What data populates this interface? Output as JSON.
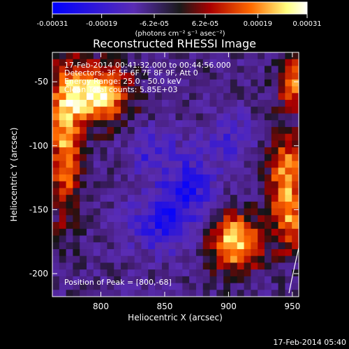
{
  "chart_data": {
    "type": "heatmap",
    "title": "Reconstructed RHESSI Image",
    "xlabel": "Heliocentric X (arcsec)",
    "ylabel": "Heliocentric Y (arcsec)",
    "xlim": [
      762,
      955
    ],
    "ylim": [
      -218,
      -27
    ],
    "x_ticks": [
      800,
      850,
      900,
      950
    ],
    "y_ticks": [
      -50,
      -100,
      -150,
      -200
    ],
    "colorbar": {
      "range": [
        -0.00031,
        0.00031
      ],
      "ticks": [
        "-0.00031",
        "-0.00019",
        "-6.2e-05",
        "6.2e-05",
        "0.00019",
        "0.00031"
      ],
      "tick_values": [
        -0.00031,
        -0.00019,
        -6.2e-05,
        6.2e-05,
        0.00019,
        0.00031
      ],
      "units": "(photons cm⁻² s⁻¹ asec⁻²)",
      "colors": [
        "#0000ff",
        "#5a2cb4",
        "#1a1a1a",
        "#aa0000",
        "#ff6a00",
        "#ffff80",
        "#ffffff"
      ]
    },
    "annotations": {
      "time": "17-Feb-2014 00:41:32.000 to 00:44:56.000",
      "detectors": "Detectors: 3F 5F 6F 7F 8F 9F, Att 0",
      "energy": "Energy Range: 25.0 - 50.0 keV",
      "clean": "Clean    Total counts: 5.85E+03",
      "peak": "Position of Peak = [800,-68]"
    },
    "peak": [
      800,
      -68
    ],
    "sources": [
      {
        "x": 795,
        "y": -60,
        "amp": 1.0,
        "sx": 18,
        "sy": 16
      },
      {
        "x": 772,
        "y": -100,
        "amp": 0.75,
        "sx": 8,
        "sy": 40
      },
      {
        "x": 905,
        "y": -175,
        "amp": 0.9,
        "sx": 14,
        "sy": 16
      },
      {
        "x": 945,
        "y": -120,
        "amp": 0.7,
        "sx": 10,
        "sy": 22
      },
      {
        "x": 948,
        "y": -160,
        "amp": 0.55,
        "sx": 9,
        "sy": 18
      },
      {
        "x": 950,
        "y": -50,
        "amp": 0.65,
        "sx": 8,
        "sy": 15
      }
    ],
    "negative_regions": [
      {
        "x": 850,
        "y": -160,
        "amp": -0.55,
        "sx": 18,
        "sy": 16
      },
      {
        "x": 870,
        "y": -130,
        "amp": -0.45,
        "sx": 14,
        "sy": 16
      },
      {
        "x": 840,
        "y": -105,
        "amp": -0.35,
        "sx": 14,
        "sy": 14
      },
      {
        "x": 900,
        "y": -95,
        "amp": -0.35,
        "sx": 12,
        "sy": 14
      }
    ]
  },
  "timestamp": "17-Feb-2014 05:40"
}
